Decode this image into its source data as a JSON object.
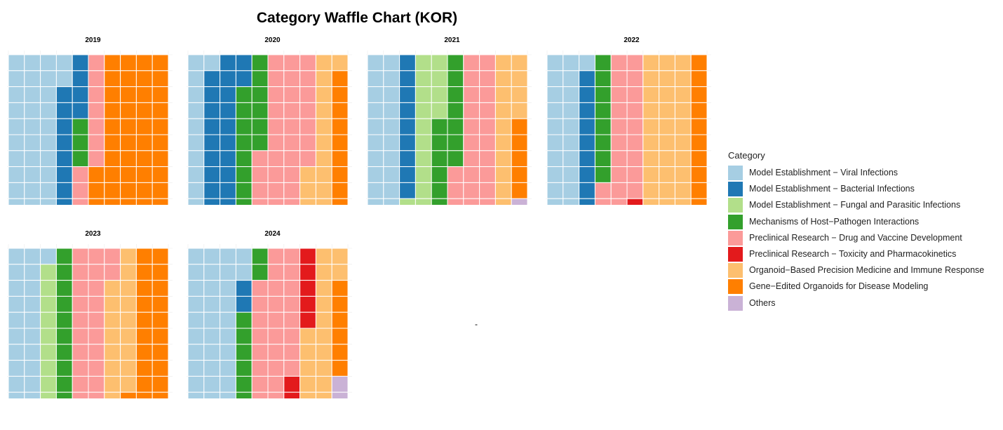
{
  "title": "Category Waffle Chart (KOR)",
  "chart_data": {
    "type": "waffle",
    "title": "Category Waffle Chart (KOR)",
    "grid": {
      "rows": 10,
      "cols": 10,
      "fill_order": "column-major, top-to-bottom, left-to-right"
    },
    "legend": {
      "title": "Category",
      "position": "right"
    },
    "categories": [
      {
        "key": "viral",
        "label": "Model Establishment − Viral Infections",
        "color": "#A6CEE3"
      },
      {
        "key": "bacterial",
        "label": "Model Establishment − Bacterial Infections",
        "color": "#1F78B4"
      },
      {
        "key": "fungal",
        "label": "Model Establishment − Fungal and Parasitic Infections",
        "color": "#B2DF8A"
      },
      {
        "key": "hostpath",
        "label": "Mechanisms of Host−Pathogen Interactions",
        "color": "#33A02C"
      },
      {
        "key": "drug",
        "label": "Preclinical Research − Drug and Vaccine Development",
        "color": "#FB9A99"
      },
      {
        "key": "tox",
        "label": "Preclinical Research − Toxicity and Pharmacokinetics",
        "color": "#E31A1C"
      },
      {
        "key": "precision",
        "label": "Organoid−Based Precision Medicine and Immune Response",
        "color": "#FDBF6F"
      },
      {
        "key": "gene",
        "label": "Gene−Edited Organoids for Disease Modeling",
        "color": "#FF7F00"
      },
      {
        "key": "others",
        "label": "Others",
        "color": "#CAB2D6"
      }
    ],
    "panels": [
      {
        "year": "2019",
        "counts": {
          "viral": 32,
          "bacterial": 12,
          "hostpath": 3,
          "drug": 10,
          "gene": 43
        }
      },
      {
        "year": "2020",
        "counts": {
          "viral": 11,
          "bacterial": 21,
          "hostpath": 14,
          "drug": 31,
          "precision": 14,
          "gene": 9
        }
      },
      {
        "year": "2021",
        "counts": {
          "viral": 20,
          "bacterial": 9,
          "fungal": 15,
          "hostpath": 13,
          "drug": 23,
          "precision": 14,
          "gene": 5,
          "others": 1
        }
      },
      {
        "year": "2022",
        "counts": {
          "viral": 21,
          "bacterial": 9,
          "hostpath": 8,
          "drug": 21,
          "tox": 1,
          "precision": 30,
          "gene": 10
        }
      },
      {
        "year": "2023",
        "counts": {
          "viral": 21,
          "fungal": 9,
          "hostpath": 10,
          "drug": 22,
          "precision": 17,
          "gene": 21
        }
      },
      {
        "year": "2024",
        "counts": {
          "viral": 32,
          "bacterial": 2,
          "hostpath": 8,
          "drug": 26,
          "tox": 7,
          "precision": 17,
          "gene": 6,
          "others": 2
        }
      }
    ]
  },
  "stray_mark": "-"
}
